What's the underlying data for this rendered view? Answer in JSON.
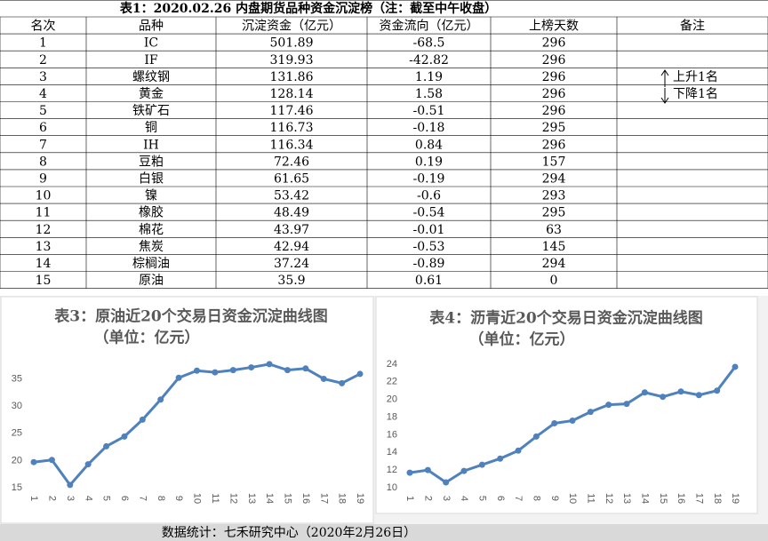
{
  "table": {
    "title": "表1：2020.02.26 内盘期货品种资金沉淀榜（注：截至中午收盘）",
    "headers": [
      "名次",
      "品种",
      "沉淀资金（亿元）",
      "资金流向（亿元）",
      "上榜天数",
      "备注"
    ],
    "rows": [
      [
        "1",
        "IC",
        "501.89",
        "-68.5",
        "296",
        ""
      ],
      [
        "2",
        "IF",
        "319.93",
        "-42.82",
        "296",
        ""
      ],
      [
        "3",
        "螺纹钢",
        "131.86",
        "1.19",
        "296",
        "上升1名"
      ],
      [
        "4",
        "黄金",
        "128.14",
        "1.58",
        "296",
        "下降1名"
      ],
      [
        "5",
        "铁矿石",
        "117.46",
        "-0.51",
        "296",
        ""
      ],
      [
        "6",
        "铜",
        "116.73",
        "-0.18",
        "295",
        ""
      ],
      [
        "7",
        "IH",
        "116.34",
        "0.84",
        "296",
        ""
      ],
      [
        "8",
        "豆粕",
        "72.46",
        "0.19",
        "157",
        ""
      ],
      [
        "9",
        "白银",
        "61.65",
        "-0.19",
        "294",
        ""
      ],
      [
        "10",
        "镍",
        "53.42",
        "-0.6",
        "293",
        ""
      ],
      [
        "11",
        "橡胶",
        "48.49",
        "-0.54",
        "295",
        ""
      ],
      [
        "12",
        "棉花",
        "43.97",
        "-0.01",
        "63",
        ""
      ],
      [
        "13",
        "焦炭",
        "42.94",
        "-0.53",
        "145",
        ""
      ],
      [
        "14",
        "棕榈油",
        "37.24",
        "-0.89",
        "294",
        ""
      ],
      [
        "15",
        "原油",
        "35.9",
        "0.61",
        "0",
        ""
      ]
    ]
  },
  "chart_data": [
    {
      "type": "line",
      "title": "表3：原油近20个交易日资金沉淀曲线图",
      "subtitle": "（单位：亿元）",
      "categories": [
        "1",
        "2",
        "3",
        "4",
        "5",
        "6",
        "7",
        "8",
        "9",
        "10",
        "11",
        "12",
        "13",
        "14",
        "15",
        "16",
        "17",
        "18",
        "19"
      ],
      "values": [
        19.7,
        20.1,
        15.5,
        19.3,
        22.6,
        24.4,
        27.5,
        31.2,
        35.2,
        36.5,
        36.2,
        36.6,
        37.1,
        37.7,
        36.6,
        36.9,
        35.0,
        34.2,
        35.9
      ],
      "color": "#4f81bd",
      "ylim": [
        15,
        38.5
      ],
      "yticks": [
        15,
        20,
        25,
        30,
        35
      ],
      "grid": false
    },
    {
      "type": "line",
      "title": "表4：沥青近20个交易日资金沉淀曲线图",
      "subtitle": "（单位：亿元）",
      "categories": [
        "1",
        "2",
        "3",
        "4",
        "5",
        "6",
        "7",
        "8",
        "9",
        "10",
        "11",
        "12",
        "13",
        "14",
        "15",
        "16",
        "17",
        "18",
        "19"
      ],
      "values": [
        11.7,
        12.0,
        10.6,
        11.9,
        12.6,
        13.3,
        14.2,
        15.8,
        17.3,
        17.6,
        18.6,
        19.4,
        19.5,
        20.8,
        20.3,
        20.9,
        20.5,
        21.0,
        23.7
      ],
      "color": "#4f81bd",
      "ylim": [
        10,
        24.5
      ],
      "yticks": [
        10,
        12,
        14,
        16,
        18,
        20,
        22,
        24
      ],
      "grid": false
    }
  ],
  "footer": "数据统计：七禾研究中心（2020年2月26日）"
}
